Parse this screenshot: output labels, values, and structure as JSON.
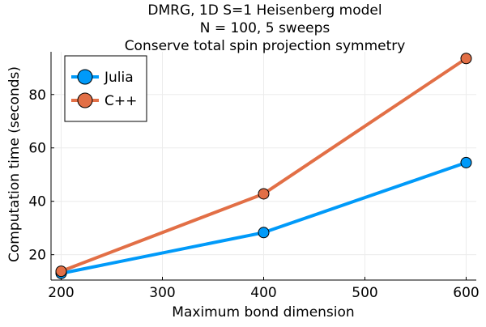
{
  "chart_data": {
    "type": "line",
    "title_lines": [
      "DMRG, 1D S=1 Heisenberg model",
      "N = 100, 5 sweeps",
      "Conserve total spin projection symmetry"
    ],
    "xlabel": "Maximum bond dimension",
    "ylabel": "Computation time (seconds)",
    "xlim": [
      190,
      610
    ],
    "ylim": [
      10.5,
      96
    ],
    "x_ticks": [
      200,
      300,
      400,
      500,
      600
    ],
    "y_ticks": [
      20,
      40,
      60,
      80
    ],
    "grid": true,
    "legend_position": "top-left",
    "series": [
      {
        "name": "Julia",
        "color": "#009af9",
        "marker": "circle",
        "x": [
          200,
          400,
          600
        ],
        "y": [
          13.0,
          28.3,
          54.5
        ]
      },
      {
        "name": "C++",
        "color": "#e26f46",
        "marker": "circle",
        "x": [
          200,
          400,
          600
        ],
        "y": [
          13.8,
          42.8,
          93.5
        ]
      }
    ]
  }
}
